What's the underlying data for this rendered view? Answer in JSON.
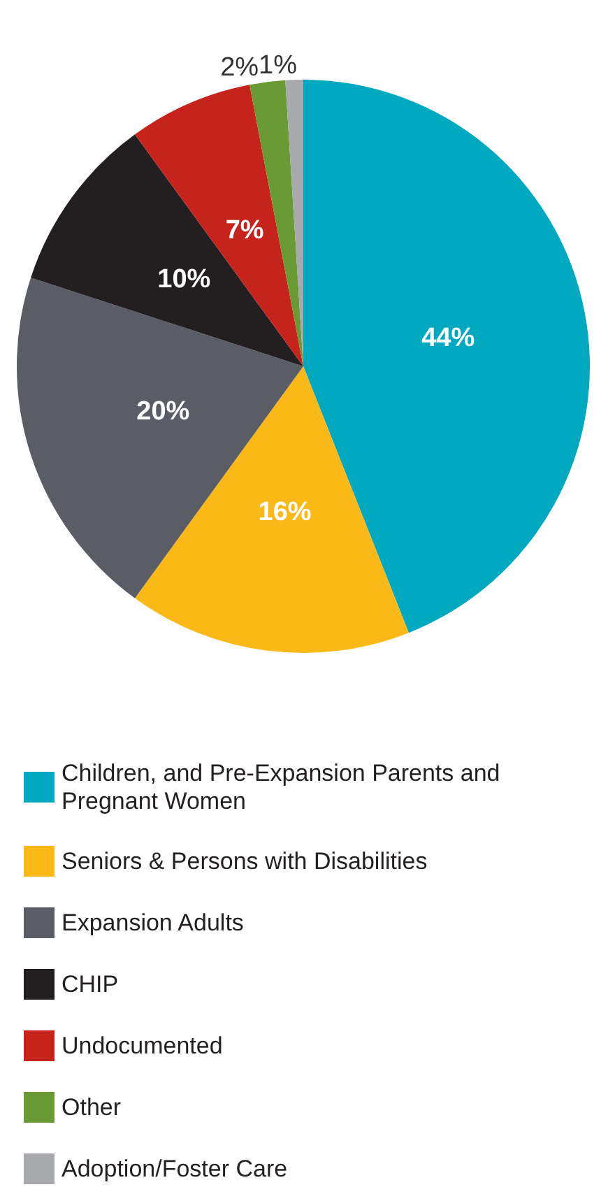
{
  "chart_data": {
    "type": "pie",
    "categories": [
      "Children, and Pre-Expansion Parents and Pregnant Women",
      "Seniors & Persons with Disabilities",
      "Expansion Adults",
      "CHIP",
      "Undocumented",
      "Other",
      "Adoption/Foster Care"
    ],
    "values": [
      44,
      16,
      20,
      10,
      7,
      2,
      1
    ],
    "colors": [
      "#00a9c0",
      "#fbb917",
      "#5a5c66",
      "#231f20",
      "#c5231c",
      "#6a9a33",
      "#a7a9ac"
    ],
    "value_labels": [
      "44%",
      "16%",
      "20%",
      "10%",
      "7%",
      "2%",
      "1%"
    ],
    "data_labels": true,
    "legend": "bottom"
  }
}
